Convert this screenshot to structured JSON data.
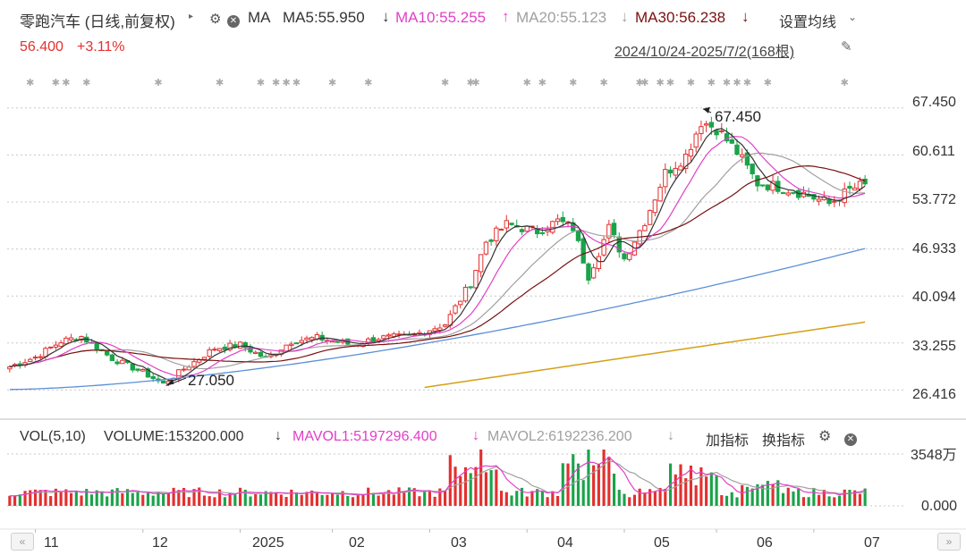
{
  "header": {
    "title": "零跑汽车 (日线,前复权)",
    "ma_label": "MA",
    "ma5": "MA5:55.950",
    "ma10": "MA10:55.255",
    "ma20": "MA20:55.123",
    "ma30": "MA30:56.238",
    "settings": "设置均线",
    "price": "56.400",
    "change": "+3.11%",
    "range": "2024/10/24-2025/7/2(168根)"
  },
  "volume_header": {
    "vol_label": "VOL(5,10)",
    "volume": "VOLUME:153200.000",
    "mavol1": "MAVOL1:5197296.400",
    "mavol2": "MAVOL2:6192236.200",
    "add_indicator": "加指标",
    "switch_indicator": "换指标"
  },
  "y_ticks": [
    "67.450",
    "60.611",
    "53.772",
    "46.933",
    "40.094",
    "33.255",
    "26.416"
  ],
  "vol_ticks": [
    "3548万",
    "0.000"
  ],
  "x_ticks": [
    "11",
    "12",
    "2025",
    "02",
    "03",
    "04",
    "05",
    "06",
    "07"
  ],
  "annotations": {
    "high": "67.450",
    "low": "27.050"
  },
  "colors": {
    "up": "#e2302f",
    "down": "#1aa34a",
    "ma5": "#333333",
    "ma10": "#e040c8",
    "ma20": "#a0a0a0",
    "ma30": "#7a1010",
    "ma_long1": "#5b8fd6",
    "ma_long2": "#d4a017",
    "grid": "#c8c8c8"
  },
  "chart_data": {
    "type": "candlestick",
    "title": "零跑汽车 (日线,前复权)",
    "date_range": "2024/10/24-2025/7/2",
    "bars_count": 168,
    "ylim": [
      24.0,
      69.5
    ],
    "high": 67.45,
    "low": 27.05,
    "last_close": 56.4,
    "change_pct": 3.11,
    "months": [
      "11",
      "12",
      "2025",
      "02",
      "03",
      "04",
      "05",
      "06",
      "07"
    ],
    "close_keypoints": [
      {
        "i": 0,
        "v": 29.8
      },
      {
        "i": 5,
        "v": 31.2
      },
      {
        "i": 10,
        "v": 33.5
      },
      {
        "i": 14,
        "v": 34.2
      },
      {
        "i": 20,
        "v": 31.0
      },
      {
        "i": 26,
        "v": 29.0
      },
      {
        "i": 30,
        "v": 27.3
      },
      {
        "i": 34,
        "v": 29.5
      },
      {
        "i": 40,
        "v": 32.5
      },
      {
        "i": 45,
        "v": 33.0
      },
      {
        "i": 50,
        "v": 31.0
      },
      {
        "i": 55,
        "v": 33.5
      },
      {
        "i": 60,
        "v": 34.0
      },
      {
        "i": 67,
        "v": 33.0
      },
      {
        "i": 72,
        "v": 34.0
      },
      {
        "i": 78,
        "v": 34.2
      },
      {
        "i": 85,
        "v": 36.0
      },
      {
        "i": 90,
        "v": 42.0
      },
      {
        "i": 93,
        "v": 48.0
      },
      {
        "i": 97,
        "v": 50.5
      },
      {
        "i": 103,
        "v": 49.5
      },
      {
        "i": 107,
        "v": 51.0
      },
      {
        "i": 110,
        "v": 50.0
      },
      {
        "i": 113,
        "v": 43.0
      },
      {
        "i": 117,
        "v": 50.0
      },
      {
        "i": 120,
        "v": 45.5
      },
      {
        "i": 124,
        "v": 51.0
      },
      {
        "i": 128,
        "v": 58.0
      },
      {
        "i": 132,
        "v": 60.5
      },
      {
        "i": 135,
        "v": 65.5
      },
      {
        "i": 138,
        "v": 64.5
      },
      {
        "i": 142,
        "v": 61.0
      },
      {
        "i": 146,
        "v": 56.5
      },
      {
        "i": 150,
        "v": 56.0
      },
      {
        "i": 155,
        "v": 55.0
      },
      {
        "i": 160,
        "v": 53.5
      },
      {
        "i": 164,
        "v": 55.5
      },
      {
        "i": 167,
        "v": 56.4
      }
    ],
    "ma_long_series": [
      {
        "name": "MA(long1)",
        "start": 26.5,
        "end": 47.0
      },
      {
        "name": "MA(long2)",
        "start": 26.8,
        "end": 36.3
      }
    ],
    "volume_ylim": [
      0,
      35480000
    ]
  }
}
